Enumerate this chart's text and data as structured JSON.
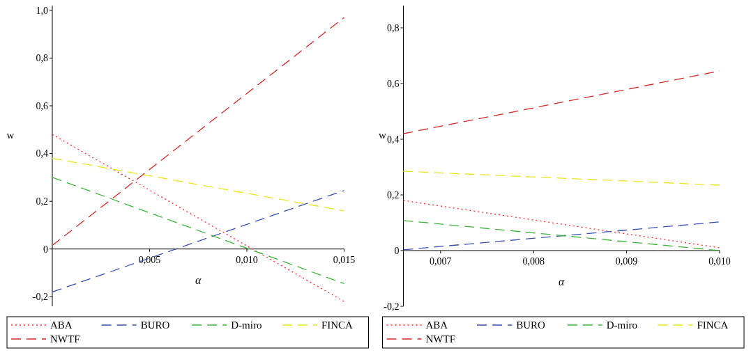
{
  "chart_data": [
    {
      "type": "line",
      "xlabel": "α",
      "ylabel": "w",
      "x": [
        0,
        0.015
      ],
      "xlim": [
        0,
        0.015
      ],
      "ylim": [
        -0.24,
        1.02
      ],
      "xticks": [
        {
          "value": 0.005,
          "label": "0,005"
        },
        {
          "value": 0.01,
          "label": "0,010"
        },
        {
          "value": 0.015,
          "label": "0,015"
        }
      ],
      "yticks": [
        {
          "value": -0.2,
          "label": "-0,2"
        },
        0,
        {
          "value": 0.2,
          "label": "0,2"
        },
        {
          "value": 0.4,
          "label": "0,4"
        },
        {
          "value": 0.6,
          "label": "0,6"
        },
        {
          "value": 0.8,
          "label": "0,8"
        },
        {
          "value": 1.0,
          "label": "1,0"
        }
      ],
      "legend": "bottom",
      "series": [
        {
          "name": "ABA",
          "color": "#ff2a2a",
          "line_style": "dotted",
          "values": [
            0.48,
            -0.22
          ]
        },
        {
          "name": "BURO",
          "color": "#3a4fb0",
          "line_style": "dashed",
          "values": [
            -0.18,
            0.245
          ]
        },
        {
          "name": "D-miro",
          "color": "#3cb43c",
          "line_style": "dashed",
          "values": [
            0.3,
            -0.145
          ]
        },
        {
          "name": "FINCA",
          "color": "#e6e61e",
          "line_style": "dashed",
          "values": [
            0.38,
            0.16
          ]
        },
        {
          "name": "NWTF",
          "color": "#d42a2a",
          "line_style": "dashed",
          "values": [
            0.015,
            0.97
          ]
        }
      ]
    },
    {
      "type": "line",
      "xlabel": "α",
      "ylabel": "w",
      "x": [
        0.0066,
        0.01
      ],
      "xlim": [
        0.0066,
        0.01
      ],
      "ylim": [
        -0.2,
        0.88
      ],
      "xticks": [
        {
          "value": 0.007,
          "label": "0,007"
        },
        {
          "value": 0.008,
          "label": "0,008"
        },
        {
          "value": 0.009,
          "label": "0,009"
        },
        {
          "value": 0.01,
          "label": "0,010"
        }
      ],
      "yticks": [
        {
          "value": -0.2,
          "label": "-0,2"
        },
        0,
        {
          "value": 0.2,
          "label": "0,2"
        },
        {
          "value": 0.4,
          "label": "0,4"
        },
        {
          "value": 0.6,
          "label": "0,6"
        },
        {
          "value": 0.8,
          "label": "0,8"
        }
      ],
      "legend": "bottom",
      "series": [
        {
          "name": "ABA",
          "color": "#ff2a2a",
          "line_style": "dotted",
          "values": [
            0.18,
            0.01
          ]
        },
        {
          "name": "BURO",
          "color": "#3a4fb0",
          "line_style": "dashed",
          "values": [
            0.003,
            0.103
          ]
        },
        {
          "name": "D-miro",
          "color": "#3cb43c",
          "line_style": "dashed",
          "values": [
            0.108,
            0.0
          ]
        },
        {
          "name": "FINCA",
          "color": "#e6e61e",
          "line_style": "dashed",
          "values": [
            0.285,
            0.235
          ]
        },
        {
          "name": "NWTF",
          "color": "#d42a2a",
          "line_style": "dashed",
          "values": [
            0.42,
            0.645
          ]
        }
      ]
    }
  ]
}
